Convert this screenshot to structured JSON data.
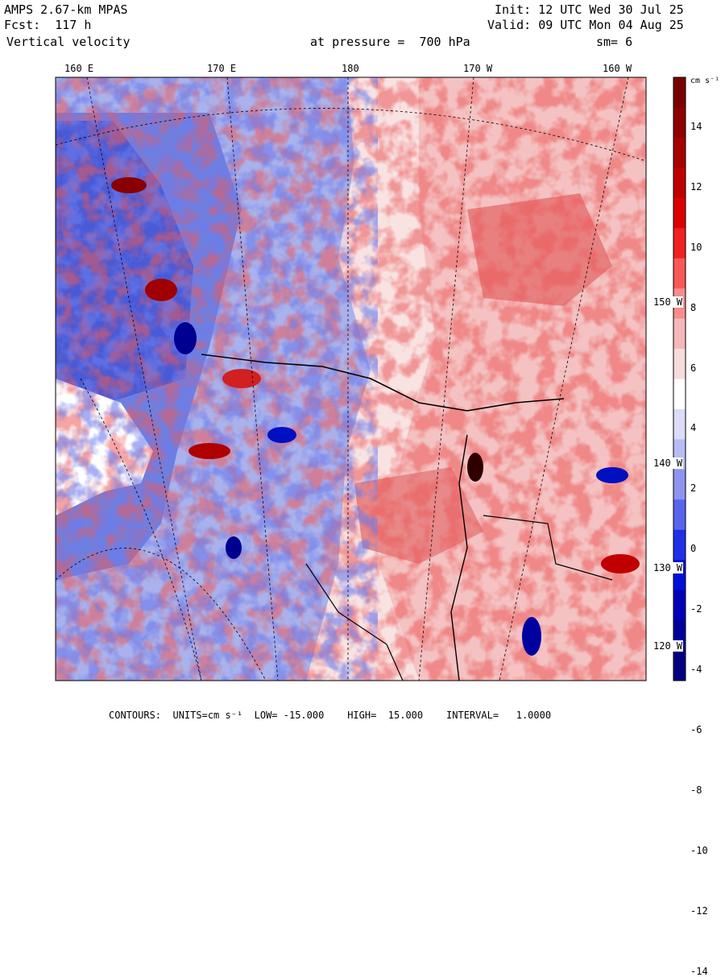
{
  "header": {
    "model": "AMPS 2.67-km MPAS",
    "fcst": "Fcst:  117 h",
    "field": "Vertical velocity",
    "init": "Init: 12 UTC Wed 30 Jul 25",
    "valid": "Valid: 09 UTC Mon 04 Aug 25",
    "pressure": "at pressure =  700 hPa",
    "smooth": "sm= 6"
  },
  "map": {
    "lon_labels": [
      "160 E",
      "170 E",
      "180",
      "170 W",
      "160 W"
    ],
    "lat_labels": [
      "150 W",
      "140 W",
      "130 W",
      "120 W"
    ],
    "colors": {
      "strong_negative": "#0000a0",
      "negative": "#2b3fd6",
      "weak_negative": "#c8ccf2",
      "zero": "#ffffff",
      "weak_positive": "#f6c9c9",
      "positive": "#e03030",
      "strong_positive": "#7a0000"
    }
  },
  "colorbar": {
    "units": "cm s⁻¹",
    "ticks": [
      "14",
      "12",
      "10",
      "8",
      "6",
      "4",
      "2",
      "0",
      "-2",
      "-4",
      "-6",
      "-8",
      "-10",
      "-12",
      "-14"
    ],
    "colors": [
      "#7a0000",
      "#8e0000",
      "#a60000",
      "#c00000",
      "#dc0000",
      "#f02020",
      "#f85858",
      "#f88c8c",
      "#f4b8b8",
      "#f8dcdc",
      "#ffffff",
      "#dcdcf8",
      "#b8bcf4",
      "#8c94f0",
      "#5864ec",
      "#2030e8",
      "#0010d8",
      "#0000b8",
      "#000098",
      "#000080"
    ]
  },
  "footer": {
    "contours": "CONTOURS:  UNITS=cm s⁻¹  LOW= -15.000    HIGH=  15.000    INTERVAL=   1.0000"
  }
}
